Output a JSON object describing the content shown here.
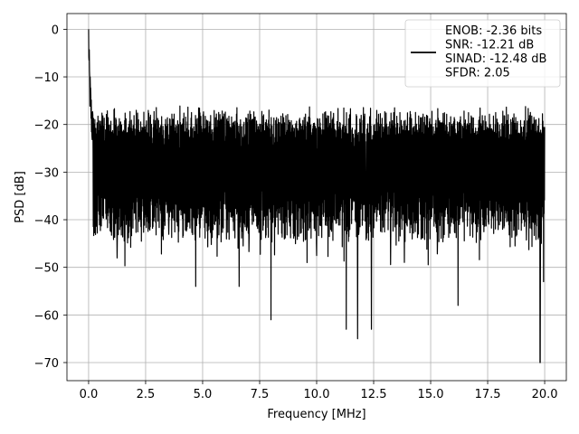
{
  "chart_data": {
    "type": "line",
    "xlabel": "Frequency [MHz]",
    "ylabel": "PSD [dB]",
    "xlim": [
      -0.95,
      20.95
    ],
    "ylim": [
      -73.8,
      3.3
    ],
    "xticks": [
      0.0,
      2.5,
      5.0,
      7.5,
      10.0,
      12.5,
      15.0,
      17.5,
      20.0
    ],
    "xtick_labels": [
      "0.0",
      "2.5",
      "5.0",
      "7.5",
      "10.0",
      "12.5",
      "15.0",
      "17.5",
      "20.0"
    ],
    "yticks": [
      0,
      -10,
      -20,
      -30,
      -40,
      -50,
      -60,
      -70
    ],
    "ytick_labels": [
      "0",
      "−10",
      "−20",
      "−30",
      "−40",
      "−50",
      "−60",
      "−70"
    ],
    "grid": true,
    "legend_position": "top-right",
    "line_color": "#000000",
    "series": [
      {
        "name": "ENOB: -2.36 bits\nSNR: -12.21 dB\nSINAD: -12.48 dB\nSFDR: 2.05",
        "legend_lines": [
          "ENOB: -2.36 bits",
          "SNR: -12.21 dB",
          "SINAD: -12.48 dB",
          "SFDR: 2.05"
        ],
        "x": [
          0.0,
          0.02,
          0.05,
          0.08,
          0.12,
          0.15,
          0.2,
          0.3,
          0.5,
          0.7,
          1.0,
          1.5,
          2.0,
          2.5,
          3.0,
          4.0,
          4.7,
          5.0,
          6.0,
          6.6,
          7.0,
          7.5,
          8.0,
          9.0,
          10.0,
          10.5,
          11.0,
          11.3,
          11.8,
          12.0,
          12.4,
          13.0,
          14.0,
          15.0,
          16.0,
          16.2,
          16.6,
          17.0,
          18.0,
          18.5,
          19.0,
          19.5,
          19.8,
          19.95,
          20.0
        ],
        "y": [
          0,
          -8,
          -12,
          -15,
          -18,
          -20,
          -22,
          -25,
          -27,
          -28,
          -28,
          -28,
          -29,
          -28,
          -29,
          -29,
          -54,
          -29,
          -29,
          -54,
          -29,
          -28,
          -61,
          -29,
          -30,
          -29,
          -30,
          -63,
          -65,
          -29,
          -63,
          -29,
          -30,
          -29,
          -29,
          -58,
          -30,
          -29,
          -29,
          -29,
          -29,
          -29,
          -70,
          -53,
          -30
        ]
      }
    ],
    "envelope": {
      "upper": [
        -17,
        -18,
        -19,
        -20,
        -21,
        -22
      ],
      "lower": [
        -30,
        -36,
        -40,
        -41,
        -42,
        -43
      ]
    }
  }
}
